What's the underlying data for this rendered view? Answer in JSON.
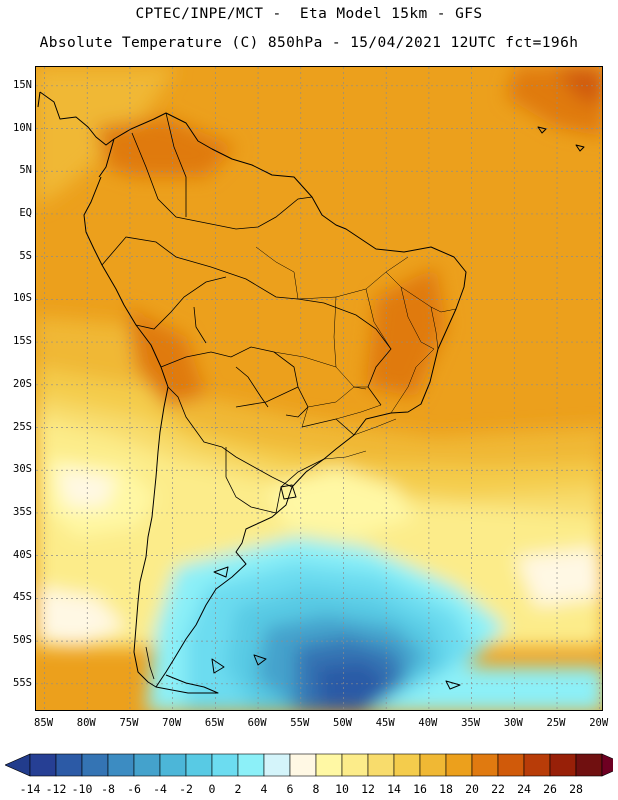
{
  "title": {
    "line1": "CPTEC/INPE/MCT -  Eta Model 15km - GFS",
    "line2": "Absolute Temperature (C) 850hPa - 15/04/2021 12UTC fct=196h"
  },
  "map": {
    "variable": "Absolute Temperature (C) 850hPa",
    "latitude_labels": [
      "15N",
      "10N",
      "5N",
      "EQ",
      "5S",
      "10S",
      "15S",
      "20S",
      "25S",
      "30S",
      "35S",
      "40S",
      "45S",
      "50S",
      "55S"
    ],
    "latitude_values": [
      15,
      10,
      5,
      0,
      -5,
      -10,
      -15,
      -20,
      -25,
      -30,
      -35,
      -40,
      -45,
      -50,
      -55
    ],
    "longitude_labels": [
      "85W",
      "80W",
      "75W",
      "70W",
      "65W",
      "60W",
      "55W",
      "50W",
      "45W",
      "40W",
      "35W",
      "30W",
      "25W",
      "20W"
    ],
    "longitude_values": [
      -85,
      -80,
      -75,
      -70,
      -65,
      -60,
      -55,
      -50,
      -45,
      -40,
      -35,
      -30,
      -25,
      -20
    ],
    "lon_range": [
      -86,
      -19.5
    ],
    "lat_range": [
      -58.3,
      17.2
    ]
  },
  "colorbar": {
    "labels": [
      "-14",
      "-12",
      "-10",
      "-8",
      "-6",
      "-4",
      "-2",
      "0",
      "2",
      "4",
      "6",
      "8",
      "10",
      "12",
      "14",
      "16",
      "18",
      "20",
      "22",
      "24",
      "26",
      "28"
    ],
    "values": [
      -14,
      -12,
      -10,
      -8,
      -6,
      -4,
      -2,
      0,
      2,
      4,
      6,
      8,
      10,
      12,
      14,
      16,
      18,
      20,
      22,
      24,
      26,
      28
    ],
    "under_color": "#223c8c",
    "over_color": "#6e0022",
    "colors": [
      "#263f94",
      "#2c5aa6",
      "#3474b4",
      "#3c8cc2",
      "#44a2cc",
      "#4cb6d8",
      "#58cae4",
      "#6cdcf0",
      "#8cf0f8",
      "#d4f4fa",
      "#fff8e4",
      "#fff8a4",
      "#fcec8a",
      "#f8dc6c",
      "#f4cc4c",
      "#f0b834",
      "#eca01c",
      "#e07a10",
      "#d05a0a",
      "#b83c08",
      "#982008",
      "#701010"
    ]
  }
}
